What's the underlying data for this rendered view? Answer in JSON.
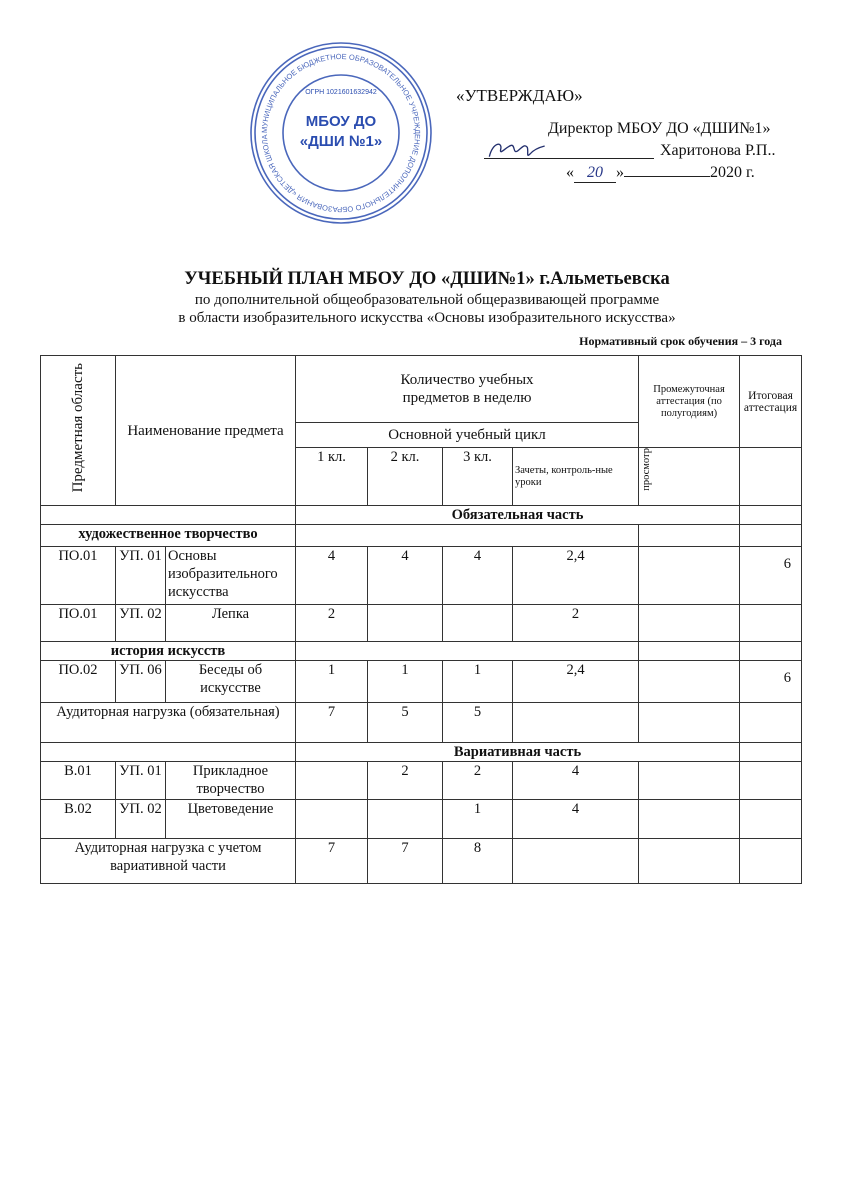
{
  "approval": {
    "label": "«УТВЕРЖДАЮ»",
    "director": "Директор МБОУ ДО «ДШИ№1»",
    "name": "Харитонова  Р.П..",
    "date_day": "20",
    "date_prefix": "«",
    "date_mid": "»",
    "date_year": "2020 г.",
    "stamp": {
      "center": "МБОУ ДО «ДШИ №1»",
      "ring": "МУНИЦИПАЛЬНОЕ БЮДЖЕТНОЕ ОБРАЗОВАТЕЛЬНОЕ УЧРЕЖДЕНИЕ ДОПОЛНИТЕЛЬНОГО ОБРАЗОВАНИЯ «ДЕТСКАЯ ШКОЛА ИСКУССТВ №1»",
      "ogrn": "ОГРН 1021601632942",
      "color": "#2b4db0"
    }
  },
  "title": "УЧЕБНЫЙ ПЛАН МБОУ ДО «ДШИ№1» г.Альметьевска",
  "subtitle1": "по дополнительной общеобразовательной общеразвивающей программе",
  "subtitle2": "в области изобразительного искусства «Основы изобразительного искусства»",
  "term": "Нормативный срок обучения – 3 года",
  "table": {
    "h_area": "Предметная область",
    "h_name": "Наименование предмета",
    "h_count": "Количество учебных предметов в неделю",
    "h_interim": "Промежуточная аттестация (по полугодиям)",
    "h_final": "Итоговая аттестация",
    "h_cycle": "Основной учебный цикл",
    "h_1": "1 кл.",
    "h_2": "2 кл.",
    "h_3": "3 кл.",
    "h_tests": "Зачеты, контроль-ные уроки",
    "h_view": "просмотр",
    "mandatory": "Обязательная часть",
    "sec_art": "художественное творчество",
    "sec_hist": "история искусств",
    "variable": "Вариативная часть",
    "rows": [
      {
        "area": "ПО.01",
        "code": "УП. 01",
        "name": "Основы изобразительного искусства",
        "k1": "4",
        "k2": "4",
        "k3": "4",
        "tests": "2,4",
        "view": "",
        "final": "6"
      },
      {
        "area": "ПО.01",
        "code": "УП. 02",
        "name": "Лепка",
        "k1": "2",
        "k2": "",
        "k3": "",
        "tests": "2",
        "view": "",
        "final": ""
      },
      {
        "area": "ПО.02",
        "code": "УП. 06",
        "name": "Беседы об искусстве",
        "k1": "1",
        "k2": "1",
        "k3": "1",
        "tests": "2,4",
        "view": "",
        "final": "6"
      },
      {
        "area": "В.01",
        "code": "УП. 01",
        "name": "Прикладное творчество",
        "k1": "",
        "k2": "2",
        "k3": "2",
        "tests": "4",
        "view": "",
        "final": ""
      },
      {
        "area": "В.02",
        "code": "УП. 02",
        "name": "Цветоведение",
        "k1": "",
        "k2": "",
        "k3": "1",
        "tests": "4",
        "view": "",
        "final": ""
      }
    ],
    "total1": {
      "label": "Аудиторная нагрузка (обязательная)",
      "k1": "7",
      "k2": "5",
      "k3": "5"
    },
    "total2": {
      "label": "Аудиторная нагрузка с учетом вариативной части",
      "k1": "7",
      "k2": "7",
      "k3": "8"
    }
  }
}
